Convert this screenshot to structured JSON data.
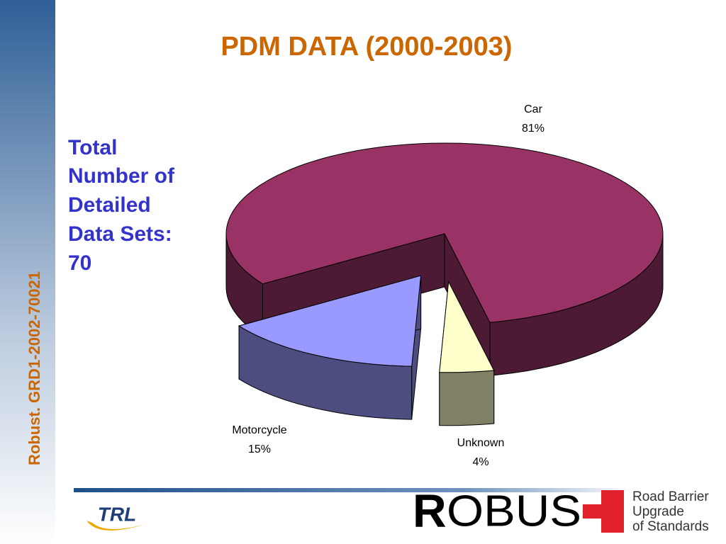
{
  "slide": {
    "vertical_text": "Robust. GRD1-2002-70021",
    "side_note": [
      "Total",
      "Number of",
      "Detailed",
      "Data Sets:",
      "70"
    ]
  },
  "chart_data": {
    "type": "pie",
    "title": "PDM DATA (2000-2003)",
    "categories": [
      "Car",
      "Motorcycle",
      "Unknown"
    ],
    "values": [
      81,
      15,
      4
    ],
    "value_labels": [
      "81%",
      "15%",
      "4%"
    ],
    "colors": [
      "#993366",
      "#9999ff",
      "#ffffcc"
    ]
  },
  "footer": {
    "logo_left": "TRL",
    "logo_main_first": "R",
    "logo_main_rest": "OBUS",
    "tagline": [
      "Road Barrier",
      "Upgrade",
      "of Standards"
    ]
  }
}
